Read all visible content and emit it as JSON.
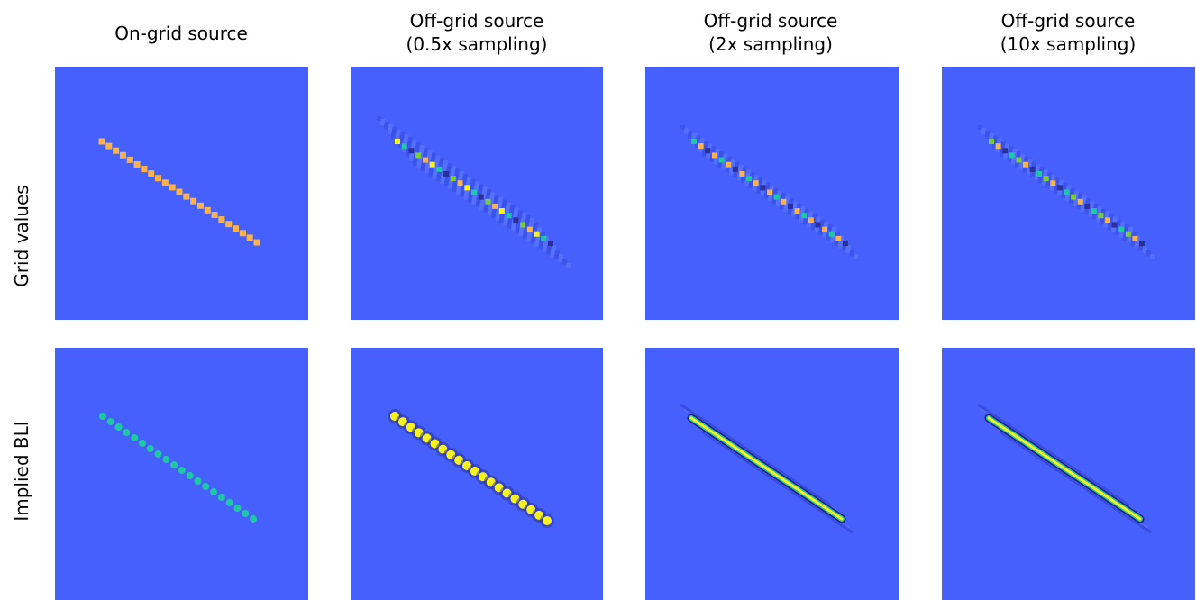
{
  "columns": [
    {
      "title": "On-grid source"
    },
    {
      "title": "Off-grid source\n(0.5x sampling)"
    },
    {
      "title": "Off-grid source\n(2x sampling)"
    },
    {
      "title": "Off-grid source\n(10x sampling)"
    }
  ],
  "rows": [
    {
      "label": "Grid values"
    },
    {
      "label": "Implied BLI"
    }
  ],
  "colors": {
    "background": "#4660fc",
    "orange": "#f9b24c",
    "yellow": "#f6f31e",
    "cyan": "#1fc7a4",
    "green": "#7acc3a",
    "dark": "#2b2f9a"
  }
}
